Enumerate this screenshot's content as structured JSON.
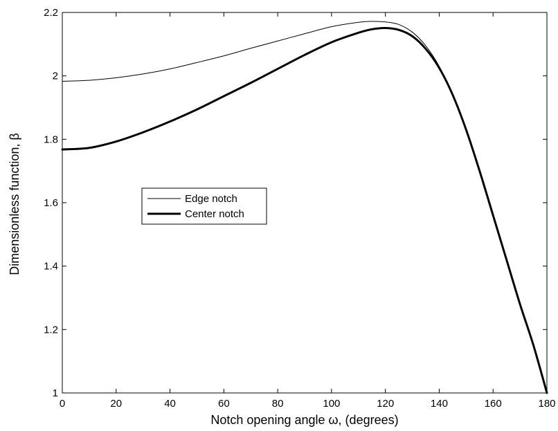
{
  "chart_data": {
    "type": "line",
    "xlabel": "Notch opening angle ω, (degrees)",
    "ylabel": "Dimensionless function, β",
    "xlim": [
      0,
      180
    ],
    "ylim": [
      1,
      2.2
    ],
    "xticks": [
      "0",
      "20",
      "40",
      "60",
      "80",
      "100",
      "120",
      "140",
      "160",
      "180"
    ],
    "yticks": [
      "1",
      "1.2",
      "1.4",
      "1.6",
      "1.8",
      "2",
      "2.2"
    ],
    "grid": false,
    "legend_position": "middle-left",
    "series": [
      {
        "name": "Edge notch",
        "line": "thin",
        "color": "#000000",
        "x": [
          0,
          10,
          20,
          30,
          40,
          50,
          60,
          70,
          80,
          90,
          100,
          110,
          115,
          120,
          125,
          130,
          135,
          140,
          145,
          150,
          155,
          160,
          165,
          170,
          175,
          180
        ],
        "y": [
          1.983,
          1.986,
          1.994,
          2.006,
          2.022,
          2.042,
          2.063,
          2.087,
          2.11,
          2.133,
          2.155,
          2.169,
          2.172,
          2.17,
          2.162,
          2.138,
          2.095,
          2.03,
          1.94,
          1.83,
          1.7,
          1.56,
          1.42,
          1.28,
          1.15,
          1.0
        ]
      },
      {
        "name": "Center notch",
        "line": "thick",
        "color": "#000000",
        "x": [
          0,
          10,
          20,
          30,
          40,
          50,
          60,
          70,
          80,
          90,
          100,
          110,
          115,
          120,
          125,
          130,
          135,
          140,
          145,
          150,
          155,
          160,
          165,
          170,
          175,
          180
        ],
        "y": [
          1.768,
          1.773,
          1.793,
          1.822,
          1.856,
          1.894,
          1.936,
          1.978,
          2.022,
          2.066,
          2.106,
          2.136,
          2.147,
          2.151,
          2.145,
          2.125,
          2.085,
          2.025,
          1.94,
          1.83,
          1.7,
          1.56,
          1.42,
          1.28,
          1.15,
          1.0
        ]
      }
    ]
  }
}
